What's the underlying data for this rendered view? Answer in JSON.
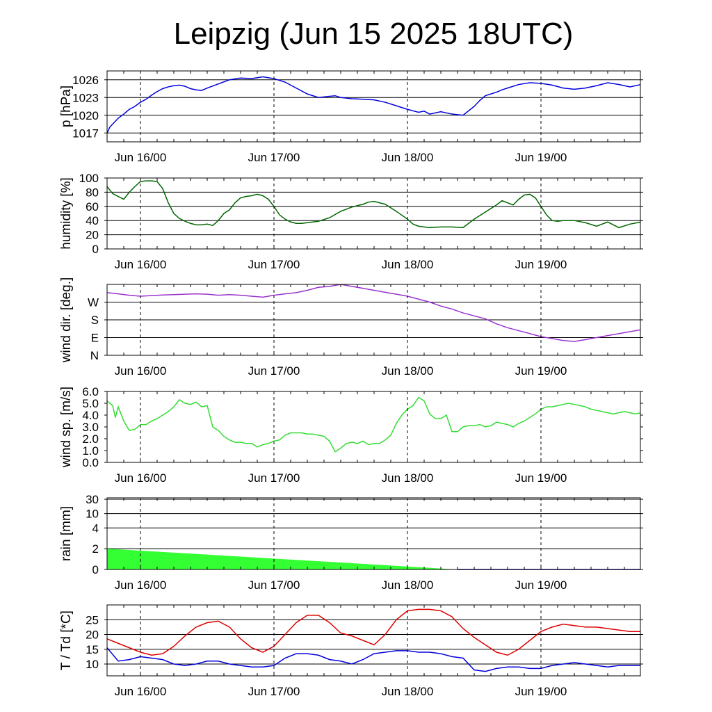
{
  "title": "Leipzig (Jun 15 2025 18UTC)",
  "chart_data": [
    {
      "type": "line",
      "ylabel": "p [hPa]",
      "yticks": [
        "1017",
        "1020",
        "1023",
        "1026"
      ],
      "ylim": [
        1015.5,
        1027.5
      ],
      "grid_values": [
        1017,
        1020,
        1023,
        1026
      ],
      "xticks": [
        "Jun 16/00",
        "Jun 17/00",
        "Jun 18/00",
        "Jun 19/00"
      ],
      "xlim_hours": [
        0,
        96
      ],
      "series": [
        {
          "color": "#0000dd",
          "x": [
            0,
            0.5,
            1,
            2,
            3,
            4,
            5,
            6,
            7,
            8,
            9,
            10,
            11,
            12,
            13,
            14,
            15,
            16,
            17,
            18,
            20,
            22,
            24,
            26,
            28,
            30,
            32,
            34,
            36,
            38,
            40,
            41,
            42,
            44,
            46,
            48,
            50,
            52,
            54,
            56,
            57,
            58,
            60,
            62,
            64,
            66,
            67,
            68,
            70,
            71,
            72,
            74,
            76,
            78,
            80,
            82,
            84,
            86,
            88,
            90,
            92,
            94,
            96
          ],
          "values": [
            1017.0,
            1018.0,
            1018.5,
            1019.5,
            1020.2,
            1021.0,
            1021.5,
            1022.2,
            1022.7,
            1023.4,
            1024.0,
            1024.5,
            1024.8,
            1025.0,
            1025.1,
            1024.9,
            1024.5,
            1024.3,
            1024.2,
            1024.6,
            1025.3,
            1026.0,
            1026.3,
            1026.2,
            1026.5,
            1026.2,
            1025.6,
            1024.6,
            1023.6,
            1023.0,
            1023.2,
            1023.3,
            1023.0,
            1022.8,
            1022.7,
            1022.6,
            1022.2,
            1021.6,
            1021.0,
            1020.5,
            1020.7,
            1020.2,
            1020.6,
            1020.2,
            1020.0,
            1021.5,
            1022.5,
            1023.3,
            1023.9,
            1024.3,
            1024.6,
            1025.2,
            1025.5,
            1025.4,
            1025.1,
            1024.6,
            1024.4,
            1024.6,
            1025.0,
            1025.5,
            1025.2,
            1024.8,
            1025.2
          ]
        }
      ]
    },
    {
      "type": "line",
      "ylabel": "humidity [%]",
      "yticks": [
        "0",
        "20",
        "40",
        "60",
        "80",
        "100"
      ],
      "ylim": [
        0,
        100
      ],
      "grid_values": [
        0,
        20,
        40,
        60,
        80
      ],
      "xticks": [
        "Jun 16/00",
        "Jun 17/00",
        "Jun 18/00",
        "Jun 19/00"
      ],
      "xlim_hours": [
        0,
        96
      ],
      "series": [
        {
          "color": "#006600",
          "x": [
            0,
            1,
            2,
            3,
            4,
            5,
            6,
            7,
            8,
            9,
            10,
            11,
            12,
            13,
            14,
            15,
            16,
            17,
            18,
            19,
            20,
            21,
            22,
            23,
            24,
            25,
            26,
            27,
            28,
            29,
            30,
            31,
            32,
            33,
            34,
            35,
            36,
            37,
            38,
            40,
            42,
            44,
            46,
            47,
            48,
            50,
            52,
            54,
            55,
            56,
            58,
            60,
            62,
            64,
            66,
            68,
            70,
            71,
            72,
            73,
            74,
            75,
            76,
            77,
            78,
            79,
            80,
            81,
            82,
            84,
            86,
            88,
            90,
            92,
            94,
            96
          ],
          "values": [
            88,
            78,
            74,
            70,
            80,
            88,
            95,
            96,
            96,
            95,
            85,
            65,
            50,
            43,
            39,
            36,
            34,
            34,
            35,
            33,
            40,
            50,
            55,
            65,
            72,
            74,
            75,
            77,
            75,
            70,
            60,
            48,
            42,
            38,
            36,
            36,
            37,
            38,
            39,
            44,
            53,
            59,
            63,
            66,
            67,
            63,
            53,
            42,
            35,
            32,
            30,
            31,
            31,
            30,
            42,
            52,
            62,
            68,
            65,
            62,
            70,
            76,
            77,
            72,
            60,
            48,
            40,
            39,
            40,
            40,
            37,
            32,
            38,
            30,
            35,
            38
          ]
        }
      ]
    },
    {
      "type": "line",
      "ylabel": "wind dir. [deg.]",
      "yticks": [
        "N",
        "E",
        "S",
        "W"
      ],
      "ylim": [
        0,
        360
      ],
      "grid_values": [
        90,
        180,
        270
      ],
      "xticks": [
        "Jun 16/00",
        "Jun 17/00",
        "Jun 18/00",
        "Jun 19/00"
      ],
      "xlim_hours": [
        0,
        96
      ],
      "series": [
        {
          "color": "#9933cc",
          "x": [
            0,
            2,
            4,
            6,
            8,
            10,
            12,
            14,
            16,
            18,
            20,
            22,
            24,
            26,
            28,
            30,
            32,
            34,
            36,
            38,
            40,
            42,
            44,
            46,
            48,
            50,
            52,
            54,
            56,
            58,
            60,
            62,
            64,
            66,
            68,
            70,
            72,
            74,
            76,
            78,
            80,
            82,
            84,
            86,
            88,
            90,
            92,
            94,
            96
          ],
          "values": [
            318,
            312,
            305,
            300,
            303,
            306,
            308,
            310,
            312,
            310,
            305,
            308,
            305,
            300,
            295,
            305,
            312,
            318,
            330,
            345,
            350,
            360,
            350,
            340,
            330,
            320,
            310,
            300,
            285,
            270,
            250,
            235,
            215,
            200,
            185,
            160,
            140,
            125,
            110,
            95,
            85,
            75,
            70,
            80,
            90,
            100,
            110,
            120,
            130
          ]
        }
      ]
    },
    {
      "type": "line",
      "ylabel": "wind sp. [m/s]",
      "yticks": [
        "0.0",
        "1.0",
        "2.0",
        "3.0",
        "4.0",
        "5.0",
        "6.0"
      ],
      "ylim": [
        0,
        6
      ],
      "grid_values": [],
      "xticks": [
        "Jun 16/00",
        "Jun 17/00",
        "Jun 18/00",
        "Jun 19/00"
      ],
      "xlim_hours": [
        0,
        96
      ],
      "series": [
        {
          "color": "#33dd33",
          "x": [
            0,
            1,
            1.5,
            2,
            3,
            4,
            5,
            6,
            7,
            8,
            9,
            10,
            11,
            12,
            13,
            14,
            15,
            16,
            17,
            18,
            19,
            20,
            21,
            22,
            23,
            24,
            25,
            26,
            27,
            28,
            29,
            30,
            31,
            32,
            33,
            34,
            35,
            36,
            37,
            38,
            39,
            40,
            41,
            42,
            43,
            44,
            45,
            46,
            47,
            48,
            49,
            50,
            51,
            52,
            53,
            54,
            55,
            56,
            57,
            58,
            59,
            60,
            61,
            62,
            63,
            64,
            65,
            66,
            67,
            68,
            69,
            70,
            71,
            72,
            73,
            74,
            75,
            76,
            77,
            78,
            79,
            80,
            81,
            82,
            83,
            84,
            85,
            86,
            87,
            88,
            89,
            90,
            91,
            92,
            93,
            94,
            95,
            96
          ],
          "values": [
            5.2,
            4.8,
            3.8,
            4.7,
            3.5,
            2.7,
            2.8,
            3.2,
            3.2,
            3.5,
            3.7,
            4.0,
            4.3,
            4.7,
            5.3,
            5.0,
            4.9,
            5.1,
            4.7,
            4.8,
            3.0,
            2.7,
            2.2,
            1.9,
            1.7,
            1.7,
            1.6,
            1.6,
            1.3,
            1.5,
            1.6,
            1.8,
            1.9,
            2.3,
            2.5,
            2.5,
            2.5,
            2.4,
            2.4,
            2.3,
            2.2,
            1.8,
            0.9,
            1.2,
            1.6,
            1.7,
            1.6,
            1.8,
            1.5,
            1.6,
            1.6,
            1.9,
            2.3,
            3.3,
            4.0,
            4.5,
            4.8,
            5.5,
            5.2,
            4.1,
            3.7,
            3.7,
            4.0,
            2.6,
            2.6,
            3.0,
            3.1,
            3.1,
            3.2,
            3.0,
            3.1,
            3.4,
            3.3,
            3.2,
            3.0,
            3.3,
            3.5,
            3.8,
            4.1,
            4.5,
            4.7,
            4.7,
            4.8,
            4.9,
            5.0,
            4.9,
            4.8,
            4.7,
            4.5,
            4.4,
            4.3,
            4.2,
            4.1,
            4.2,
            4.3,
            4.2,
            4.1,
            4.2
          ]
        }
      ]
    },
    {
      "type": "area",
      "ylabel": "rain [mm]",
      "yticks": [
        "0",
        "2",
        "4",
        "10",
        "30"
      ],
      "scale": "nonlinear",
      "grid_values": [
        0,
        2,
        4,
        10,
        30
      ],
      "xticks": [
        "Jun 16/00",
        "Jun 17/00",
        "Jun 18/00",
        "Jun 19/00"
      ],
      "xlim_hours": [
        0,
        96
      ],
      "series": [
        {
          "color": "#33ff33",
          "x": [
            0,
            63
          ],
          "values": [
            2.0,
            0.0
          ]
        }
      ]
    },
    {
      "type": "line",
      "ylabel": "T / Td [*C]",
      "yticks": [
        "10",
        "15",
        "20",
        "25"
      ],
      "ylim": [
        6,
        30
      ],
      "grid_values": [
        10,
        15,
        20,
        25
      ],
      "xticks": [
        "Jun 16/00",
        "Jun 17/00",
        "Jun 18/00",
        "Jun 19/00"
      ],
      "xlim_hours": [
        0,
        96
      ],
      "series": [
        {
          "color": "#dd0000",
          "x": [
            0,
            2,
            4,
            6,
            8,
            10,
            12,
            14,
            16,
            18,
            20,
            22,
            24,
            26,
            28,
            30,
            32,
            34,
            36,
            38,
            40,
            42,
            44,
            46,
            48,
            50,
            52,
            54,
            56,
            58,
            60,
            62,
            64,
            66,
            68,
            70,
            72,
            74,
            76,
            78,
            80,
            82,
            84,
            86,
            88,
            90,
            92,
            94,
            96
          ],
          "values": [
            18.5,
            17.0,
            15.5,
            14.0,
            13.0,
            13.5,
            16.0,
            19.5,
            22.5,
            24.0,
            24.5,
            22.5,
            18.5,
            15.5,
            14.0,
            16.0,
            20.0,
            24.0,
            26.5,
            26.5,
            24.0,
            20.5,
            19.5,
            18.0,
            16.5,
            20.0,
            25.0,
            28.0,
            28.5,
            28.5,
            28.0,
            26.0,
            22.0,
            19.0,
            16.5,
            14.0,
            13.0,
            15.0,
            18.0,
            21.0,
            22.5,
            23.5,
            23.0,
            22.5,
            22.5,
            22.0,
            21.5,
            21.0,
            21.0
          ]
        },
        {
          "color": "#0000dd",
          "x": [
            0,
            2,
            4,
            6,
            8,
            10,
            12,
            14,
            16,
            18,
            20,
            22,
            24,
            26,
            28,
            30,
            32,
            34,
            36,
            38,
            40,
            42,
            44,
            46,
            48,
            50,
            52,
            54,
            56,
            58,
            60,
            62,
            64,
            66,
            68,
            70,
            72,
            74,
            76,
            78,
            80,
            82,
            84,
            86,
            88,
            90,
            92,
            94,
            96
          ],
          "values": [
            15.5,
            11.0,
            11.5,
            12.5,
            12.0,
            11.5,
            10.0,
            9.5,
            10.0,
            11.0,
            11.0,
            10.0,
            9.5,
            9.0,
            9.0,
            9.5,
            12.0,
            13.5,
            13.5,
            13.0,
            11.5,
            11.0,
            10.0,
            11.5,
            13.5,
            14.0,
            14.5,
            14.5,
            14.0,
            14.0,
            13.5,
            12.5,
            12.0,
            8.0,
            7.5,
            8.5,
            9.0,
            9.0,
            8.5,
            8.5,
            9.5,
            10.0,
            10.5,
            10.0,
            9.5,
            9.0,
            9.5,
            9.5,
            9.5
          ]
        }
      ]
    }
  ]
}
